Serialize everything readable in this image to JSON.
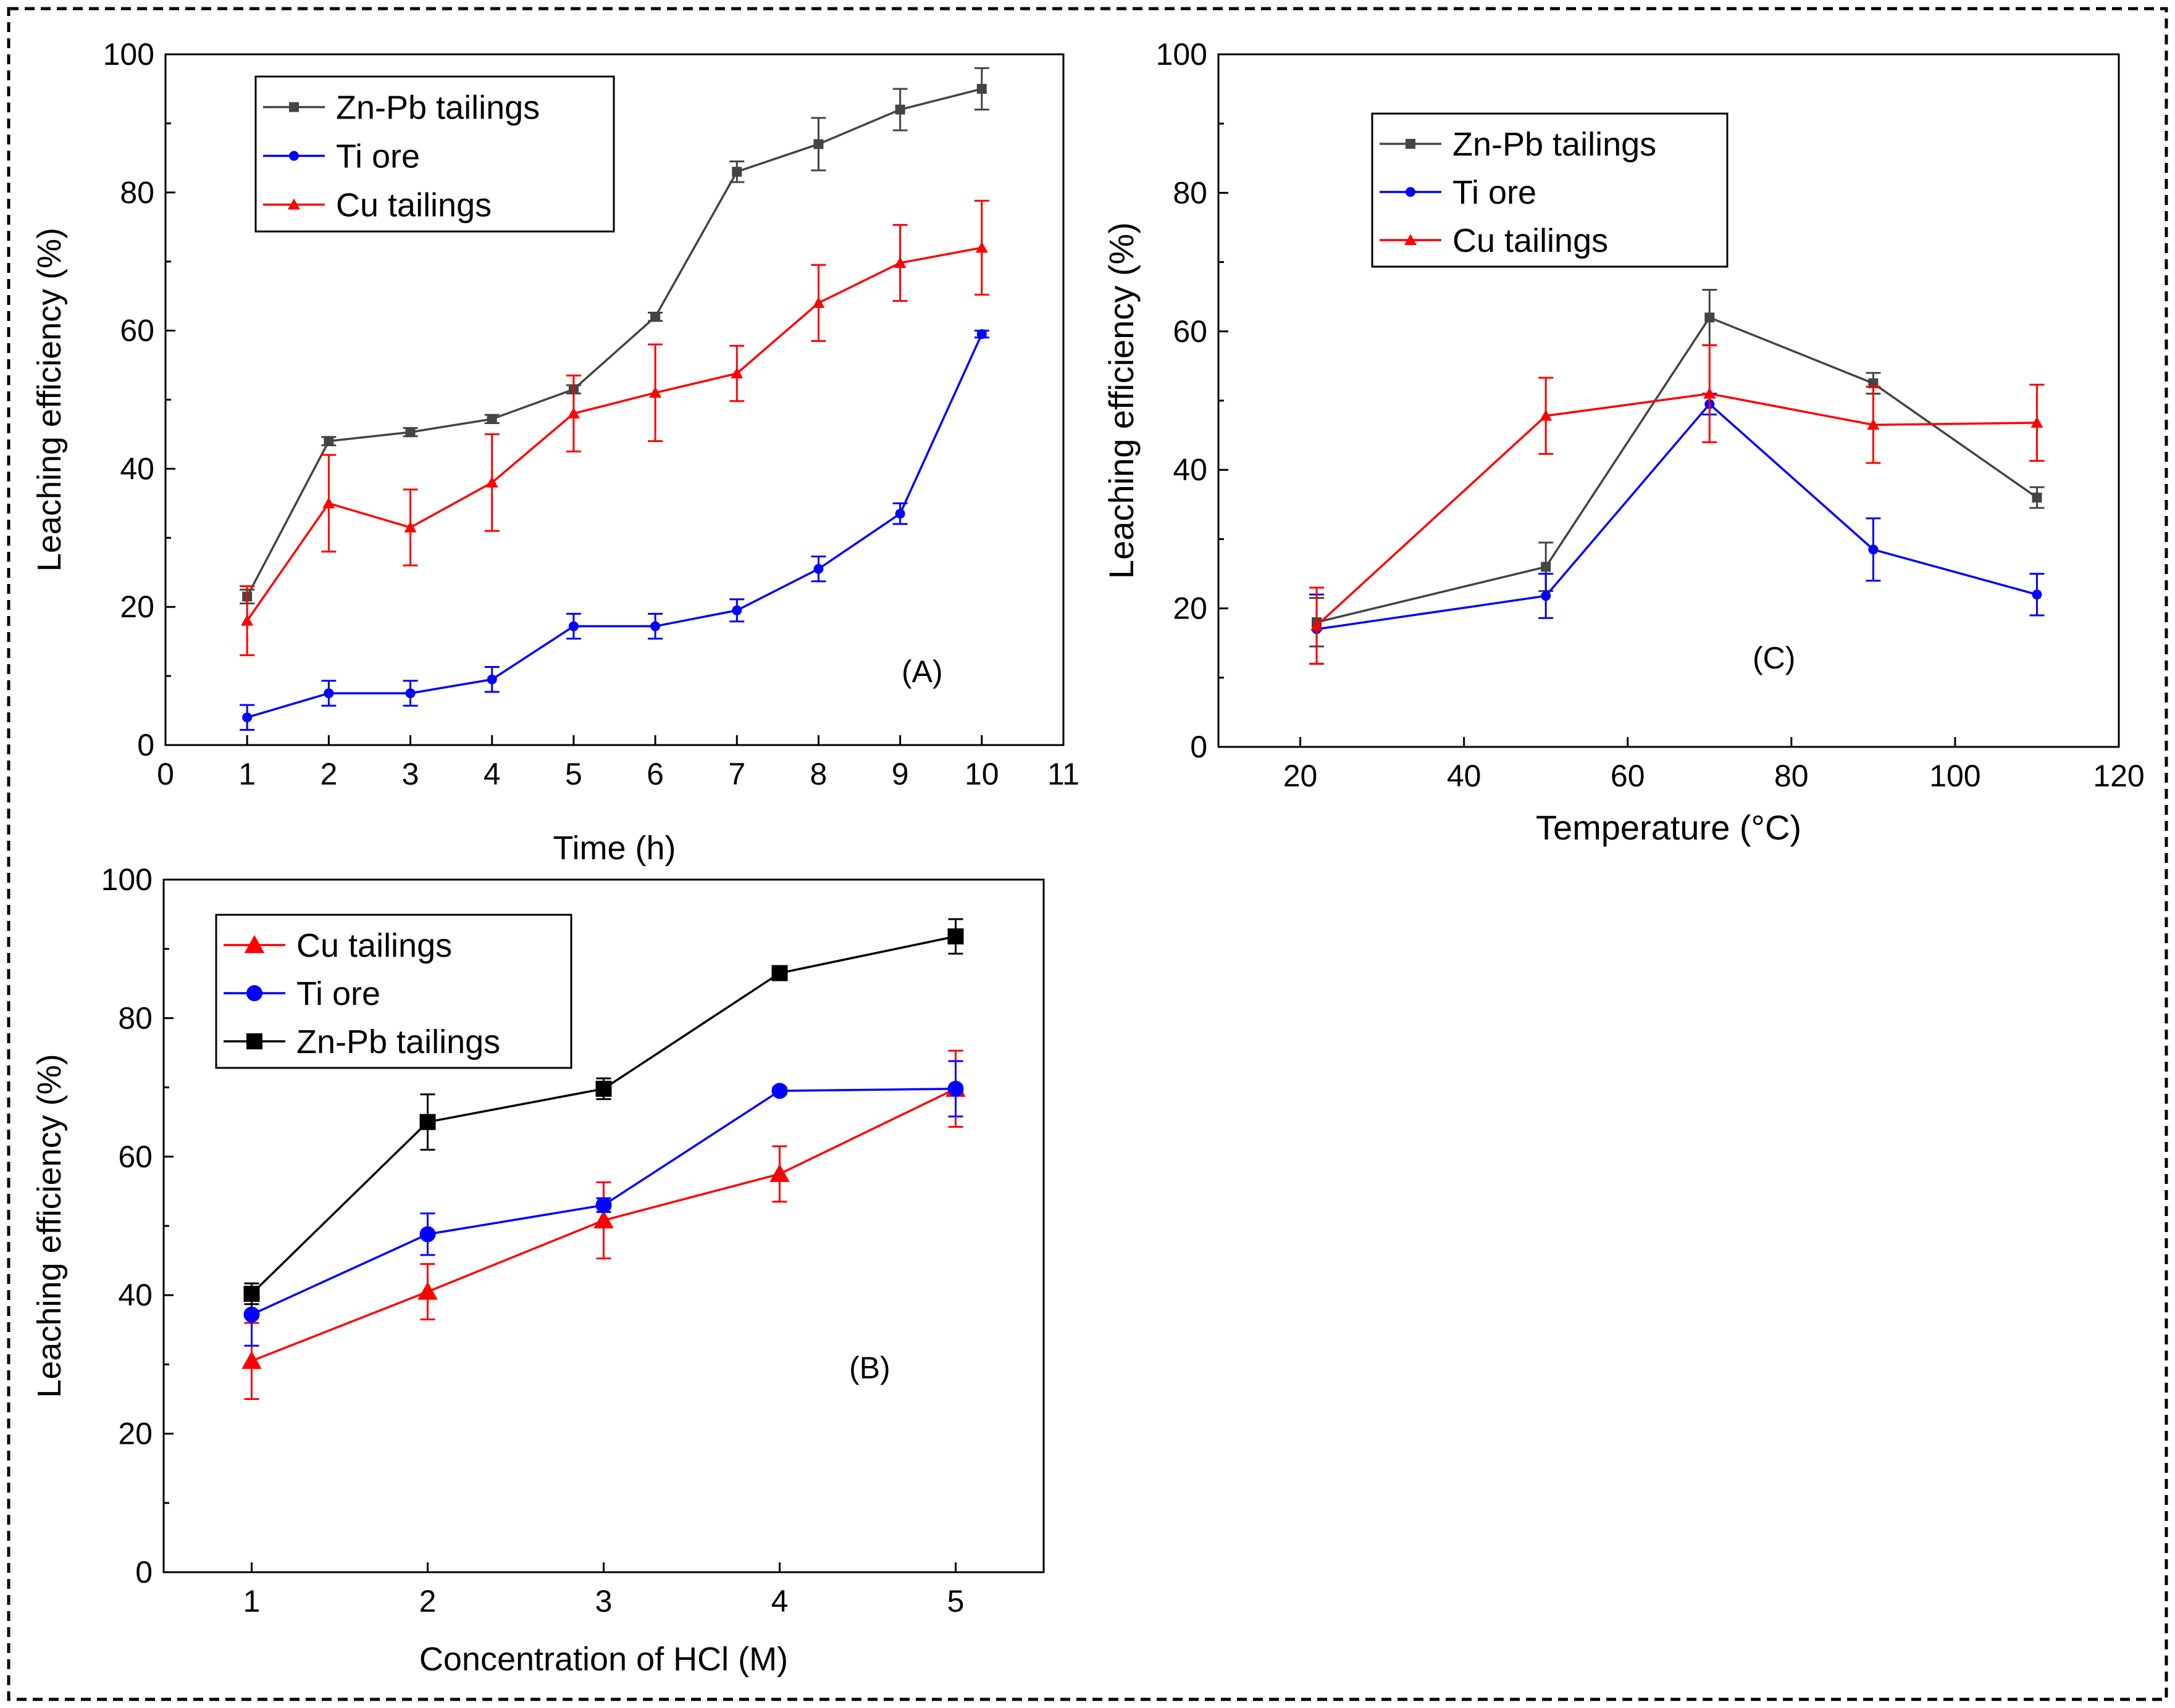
{
  "colors": {
    "zn_pb": "#444444",
    "zn_pb_b": "#000000",
    "ti": "#0000ff",
    "cu": "#ff0000",
    "frame": "#000000"
  },
  "chart_data": [
    {
      "id": "A",
      "type": "line",
      "panel_label": "(A)",
      "xlabel": "Time (h)",
      "ylabel": "Leaching efficiency (%)",
      "xlim": [
        0,
        11
      ],
      "ylim": [
        0,
        100
      ],
      "xticks": [
        "0",
        "1",
        "2",
        "3",
        "4",
        "5",
        "6",
        "7",
        "8",
        "9",
        "10",
        "11"
      ],
      "yticks": [
        "0",
        "20",
        "40",
        "60",
        "80",
        "100"
      ],
      "legend_position": "top-left",
      "series": [
        {
          "name": "Zn-Pb tailings",
          "color_key": "zn_pb",
          "marker": "square",
          "x": [
            1,
            2,
            3,
            4,
            5,
            6,
            7,
            8,
            9,
            10
          ],
          "y": [
            21.5,
            44,
            45.3,
            47.2,
            51.5,
            62,
            83,
            87,
            92,
            95
          ],
          "err": [
            1,
            0.6,
            0.6,
            0.6,
            0.6,
            0.6,
            1.5,
            3.8,
            3,
            3
          ]
        },
        {
          "name": "Ti ore",
          "color_key": "ti",
          "marker": "circle",
          "x": [
            1,
            2,
            3,
            4,
            5,
            6,
            7,
            8,
            9,
            10
          ],
          "y": [
            4,
            7.5,
            7.5,
            9.5,
            17.2,
            17.2,
            19.5,
            25.5,
            33.5,
            59.5
          ],
          "err": [
            1.8,
            1.8,
            1.8,
            1.8,
            1.8,
            1.8,
            1.6,
            1.8,
            1.5,
            0.5
          ]
        },
        {
          "name": "Cu tailings",
          "color_key": "cu",
          "marker": "triangle",
          "x": [
            1,
            2,
            3,
            4,
            5,
            6,
            7,
            8,
            9,
            10
          ],
          "y": [
            18,
            35,
            31.5,
            38,
            48,
            51,
            53.8,
            64,
            69.8,
            72
          ],
          "err": [
            5,
            7,
            5.5,
            7,
            5.5,
            7,
            4,
            5.5,
            5.5,
            6.8
          ]
        }
      ]
    },
    {
      "id": "C",
      "type": "line",
      "panel_label": "(C)",
      "xlabel": "Temperature (°C)",
      "ylabel": "Leaching efficiency (%)",
      "xlim": [
        10,
        120
      ],
      "ylim": [
        0,
        100
      ],
      "xticks": [
        "20",
        "40",
        "60",
        "80",
        "100",
        "120"
      ],
      "yticks": [
        "0",
        "20",
        "40",
        "60",
        "80",
        "100"
      ],
      "legend_position": "top-left",
      "series": [
        {
          "name": "Zn-Pb tailings",
          "color_key": "zn_pb",
          "marker": "square",
          "x": [
            22,
            50,
            70,
            90,
            110
          ],
          "y": [
            18,
            26,
            62,
            52.5,
            36
          ],
          "err": [
            3.5,
            3.5,
            4,
            1.5,
            1.5
          ]
        },
        {
          "name": "Ti ore",
          "color_key": "ti",
          "marker": "circle",
          "x": [
            22,
            50,
            70,
            90,
            110
          ],
          "y": [
            17,
            21.8,
            49.5,
            28.5,
            22
          ],
          "err": [
            5,
            3.2,
            1.5,
            4.5,
            3
          ]
        },
        {
          "name": "Cu tailings",
          "color_key": "cu",
          "marker": "triangle",
          "x": [
            22,
            50,
            70,
            90,
            110
          ],
          "y": [
            17.5,
            47.8,
            51,
            46.5,
            46.8
          ],
          "err": [
            5.5,
            5.5,
            7,
            5.5,
            5.5
          ]
        }
      ]
    },
    {
      "id": "B",
      "type": "line",
      "panel_label": "(B)",
      "xlabel": "Concentration of HCl (M)",
      "ylabel": "Leaching efficiency (%)",
      "xlim": [
        0.5,
        5.5
      ],
      "ylim": [
        0,
        100
      ],
      "xticks": [
        "1",
        "2",
        "3",
        "4",
        "5"
      ],
      "yticks": [
        "0",
        "20",
        "40",
        "60",
        "80",
        "100"
      ],
      "legend_position": "top-left",
      "series": [
        {
          "name": "Cu tailings",
          "color_key": "cu",
          "marker": "triangle",
          "x": [
            1,
            2,
            3,
            4,
            5
          ],
          "y": [
            30.5,
            40.5,
            50.8,
            57.5,
            69.8
          ],
          "err": [
            5.5,
            4,
            5.5,
            4,
            5.5
          ]
        },
        {
          "name": "Ti ore",
          "color_key": "ti",
          "marker": "circle",
          "x": [
            1,
            2,
            3,
            4,
            5
          ],
          "y": [
            37.2,
            48.8,
            53,
            69.5,
            69.8
          ],
          "err": [
            4.5,
            3,
            1,
            0.5,
            4
          ]
        },
        {
          "name": "Zn-Pb tailings",
          "color_key": "zn_pb_b",
          "marker": "square",
          "x": [
            1,
            2,
            3,
            4,
            5
          ],
          "y": [
            40.2,
            65,
            69.8,
            86.5,
            91.8
          ],
          "err": [
            1.5,
            4,
            1.5,
            0.6,
            2.5
          ]
        }
      ]
    }
  ]
}
